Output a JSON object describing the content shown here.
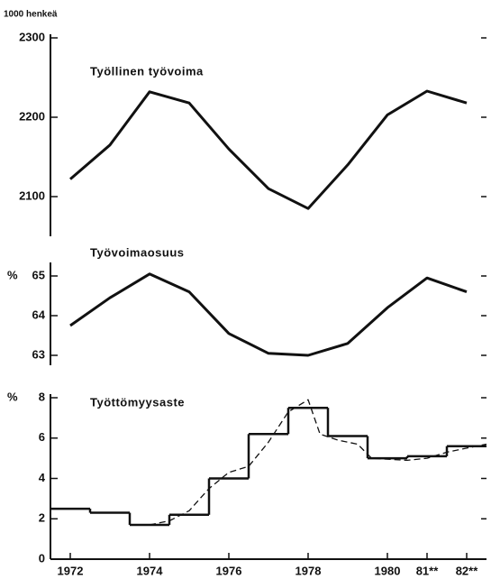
{
  "chart_data": [
    {
      "type": "line",
      "title": "Työllinen työvoima",
      "ylabel": "1000 henkeä",
      "x": [
        1972,
        1973,
        1974,
        1975,
        1976,
        1977,
        1978,
        1979,
        1980,
        1981,
        1982
      ],
      "series": [
        {
          "color": "#111111",
          "values": [
            2122,
            2165,
            2232,
            2218,
            2160,
            2110,
            2085,
            2140,
            2203,
            2233,
            2218
          ]
        }
      ],
      "xlim": [
        1971.5,
        1982.5
      ],
      "ylim": [
        2050,
        2300
      ],
      "yticks": [
        2100,
        2200,
        2300
      ]
    },
    {
      "type": "line",
      "title": "Työvoimaosuus",
      "ylabel": "%",
      "x": [
        1972,
        1973,
        1974,
        1975,
        1976,
        1977,
        1978,
        1979,
        1980,
        1981,
        1982
      ],
      "series": [
        {
          "color": "#111111",
          "values": [
            63.75,
            64.45,
            65.05,
            64.6,
            63.55,
            63.05,
            63.0,
            63.3,
            64.2,
            64.95,
            64.6
          ]
        }
      ],
      "xlim": [
        1971.5,
        1982.5
      ],
      "ylim": [
        62.75,
        65.25
      ],
      "yticks": [
        63,
        64,
        65
      ]
    },
    {
      "type": "line",
      "title": "Työttömyysaste",
      "ylabel": "%",
      "series": [
        {
          "color": "#111111",
          "drawstyle": "steps-mid",
          "x": [
            1972,
            1973,
            1974,
            1975,
            1976,
            1977,
            1978,
            1979,
            1980,
            1981,
            1982
          ],
          "values": [
            2.5,
            2.3,
            1.7,
            2.2,
            4.0,
            6.2,
            7.5,
            6.1,
            5.0,
            5.1,
            5.6
          ]
        },
        {
          "color": "#111111",
          "linestyle": "dashed",
          "x": [
            1974.0,
            1974.5,
            1975.0,
            1975.5,
            1976.0,
            1976.5,
            1977.0,
            1977.5,
            1978.0,
            1978.3,
            1978.75,
            1979.25,
            1979.6,
            1980.5,
            1981.0,
            1981.5,
            1982.0,
            1982.5
          ],
          "values": [
            1.7,
            1.9,
            2.4,
            3.5,
            4.3,
            4.6,
            5.8,
            7.3,
            7.9,
            6.2,
            5.9,
            5.7,
            5.0,
            4.9,
            5.0,
            5.3,
            5.5,
            5.7
          ]
        }
      ],
      "xlim": [
        1971.5,
        1982.5
      ],
      "ylim": [
        0,
        8
      ],
      "yticks": [
        0,
        2,
        4,
        6,
        8
      ],
      "xticks": [
        1972,
        1974,
        1976,
        1978,
        1980,
        {
          "value": 1981,
          "label": "81**"
        },
        {
          "value": 1982,
          "label": "82**"
        }
      ]
    }
  ]
}
